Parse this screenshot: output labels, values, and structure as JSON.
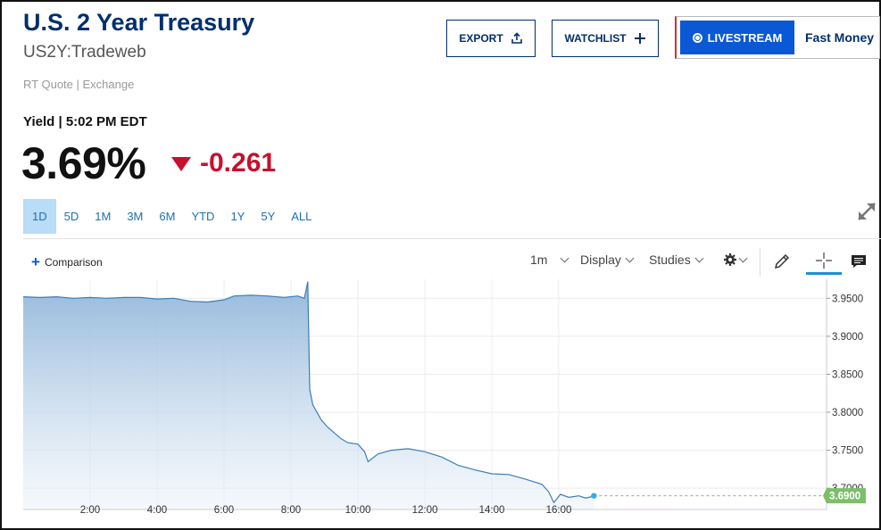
{
  "header": {
    "title": "U.S. 2 Year Treasury",
    "symbol": "US2Y:Tradeweb",
    "quote_source": "RT Quote | Exchange",
    "yield_label": "Yield | 5:02 PM EDT",
    "price": "3.69%",
    "change": "-0.261"
  },
  "actions": {
    "export_label": "EXPORT",
    "watchlist_label": "WATCHLIST",
    "livestream_label": "LIVESTREAM",
    "fast_money_label": "Fast Money"
  },
  "ranges": {
    "items": [
      "1D",
      "5D",
      "1M",
      "3M",
      "6M",
      "YTD",
      "1Y",
      "5Y",
      "ALL"
    ],
    "active": "1D"
  },
  "toolbar": {
    "comparison_label": "Comparison",
    "interval_label": "1m",
    "display_label": "Display",
    "studies_label": "Studies"
  },
  "icons": [
    "upload-icon",
    "plus-icon",
    "live-icon",
    "expand-icon",
    "gear-icon",
    "pencil-icon",
    "crosshair-icon",
    "comment-icon"
  ],
  "colors": {
    "brand_navy": "#002f6c",
    "accent_blue": "#0a58d6",
    "negative_red": "#c8102e",
    "line_blue": "#3c7db8",
    "last_price_green": "#7cbf6a"
  },
  "chart_data": {
    "type": "area",
    "x_unit": "hours",
    "x_ticks": [
      "2:00",
      "4:00",
      "6:00",
      "8:00",
      "10:00",
      "12:00",
      "14:00",
      "16:00"
    ],
    "y_ticks": [
      "3.9500",
      "3.9000",
      "3.8500",
      "3.8000",
      "3.7500",
      "3.7000"
    ],
    "xlim": [
      0,
      24
    ],
    "ylim": [
      3.672,
      3.975
    ],
    "last_value_label": "3.6900",
    "last_value": 3.69,
    "grid": true,
    "series": [
      {
        "values": [
          [
            0.0,
            3.952
          ],
          [
            0.5,
            3.951
          ],
          [
            1.0,
            3.952
          ],
          [
            1.5,
            3.95
          ],
          [
            2.0,
            3.951
          ],
          [
            2.5,
            3.95
          ],
          [
            3.0,
            3.951
          ],
          [
            3.5,
            3.951
          ],
          [
            4.0,
            3.949
          ],
          [
            4.5,
            3.95
          ],
          [
            5.0,
            3.946
          ],
          [
            5.5,
            3.945
          ],
          [
            6.0,
            3.948
          ],
          [
            6.3,
            3.953
          ],
          [
            6.8,
            3.954
          ],
          [
            7.3,
            3.953
          ],
          [
            7.8,
            3.951
          ],
          [
            8.2,
            3.953
          ],
          [
            8.4,
            3.95
          ],
          [
            8.5,
            3.972
          ],
          [
            8.56,
            3.83
          ],
          [
            8.65,
            3.81
          ],
          [
            8.9,
            3.79
          ],
          [
            9.1,
            3.78
          ],
          [
            9.5,
            3.765
          ],
          [
            9.7,
            3.76
          ],
          [
            10.0,
            3.758
          ],
          [
            10.2,
            3.748
          ],
          [
            10.3,
            3.735
          ],
          [
            10.6,
            3.745
          ],
          [
            11.0,
            3.75
          ],
          [
            11.5,
            3.752
          ],
          [
            12.0,
            3.748
          ],
          [
            12.5,
            3.741
          ],
          [
            13.0,
            3.73
          ],
          [
            13.5,
            3.724
          ],
          [
            14.0,
            3.719
          ],
          [
            14.5,
            3.718
          ],
          [
            15.0,
            3.712
          ],
          [
            15.5,
            3.705
          ],
          [
            15.7,
            3.695
          ],
          [
            15.85,
            3.681
          ],
          [
            16.05,
            3.692
          ],
          [
            16.3,
            3.688
          ],
          [
            16.6,
            3.69
          ],
          [
            16.8,
            3.687
          ],
          [
            17.0,
            3.689
          ],
          [
            17.05,
            3.69
          ]
        ]
      }
    ]
  }
}
